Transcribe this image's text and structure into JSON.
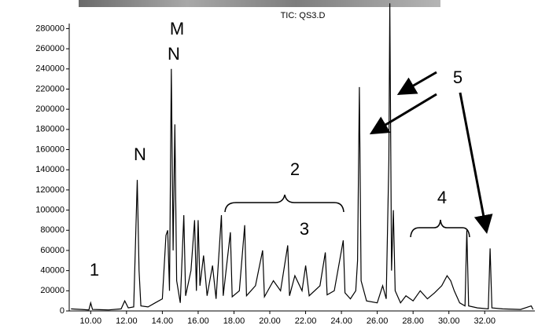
{
  "chart_data": {
    "type": "line",
    "title": "TIC: QS3.D",
    "x": [
      8.9,
      9.5,
      9.9,
      10.0,
      10.1,
      11.0,
      11.7,
      11.9,
      12.1,
      12.4,
      12.6,
      12.7,
      12.8,
      13.2,
      13.6,
      14.0,
      14.2,
      14.3,
      14.4,
      14.5,
      14.6,
      14.7,
      14.8,
      15.0,
      15.2,
      15.3,
      15.6,
      15.8,
      15.9,
      16.0,
      16.1,
      16.3,
      16.5,
      16.8,
      17.0,
      17.3,
      17.4,
      17.8,
      17.9,
      18.3,
      18.6,
      18.7,
      19.2,
      19.6,
      19.7,
      20.2,
      20.6,
      21.0,
      21.1,
      21.4,
      21.8,
      22.0,
      22.2,
      22.8,
      23.1,
      23.2,
      23.6,
      24.1,
      24.2,
      24.5,
      24.8,
      24.9,
      25.0,
      25.1,
      25.4,
      26.0,
      26.3,
      26.5,
      26.65,
      26.7,
      26.8,
      26.9,
      27.0,
      27.3,
      27.6,
      28.0,
      28.4,
      28.8,
      29.2,
      29.6,
      29.9,
      30.1,
      30.3,
      30.6,
      30.9,
      31.0,
      31.1,
      31.6,
      32.2,
      32.3,
      32.4,
      33.0,
      34.0,
      34.6,
      34.7
    ],
    "series": [
      {
        "color": "#000000",
        "values": [
          2000,
          1500,
          1000,
          8000,
          1500,
          1000,
          2000,
          10000,
          3000,
          4000,
          130000,
          40000,
          5000,
          4000,
          8000,
          12000,
          75000,
          80000,
          20000,
          240000,
          60000,
          185000,
          30000,
          8000,
          95000,
          15000,
          40000,
          90000,
          20000,
          90000,
          25000,
          55000,
          15000,
          45000,
          12000,
          95000,
          15000,
          78000,
          14000,
          20000,
          85000,
          15000,
          25000,
          60000,
          14000,
          30000,
          20000,
          65000,
          15000,
          35000,
          20000,
          45000,
          15000,
          25000,
          58000,
          16000,
          20000,
          70000,
          18000,
          12000,
          20000,
          50000,
          222000,
          30000,
          10000,
          8000,
          25000,
          12000,
          150000,
          305000,
          40000,
          100000,
          20000,
          8000,
          15000,
          10000,
          20000,
          12000,
          18000,
          25000,
          35000,
          30000,
          20000,
          8000,
          5000,
          80000,
          5000,
          3000,
          2000,
          62000,
          3000,
          2000,
          1500,
          5000,
          1500
        ]
      }
    ],
    "xlim": [
      8.8,
      34.8
    ],
    "ylim": [
      0,
      285000
    ],
    "xticks": [
      {
        "value": 10,
        "label": "10.00"
      },
      {
        "value": 12,
        "label": "12.00"
      },
      {
        "value": 14,
        "label": "14.00"
      },
      {
        "value": 16,
        "label": "16.00"
      },
      {
        "value": 18,
        "label": "18.00"
      },
      {
        "value": 20,
        "label": "20.00"
      },
      {
        "value": 22,
        "label": "22.00"
      },
      {
        "value": 24,
        "label": "24.00"
      },
      {
        "value": 26,
        "label": "26.00"
      },
      {
        "value": 28,
        "label": "28.00"
      },
      {
        "value": 30,
        "label": "30.00"
      },
      {
        "value": 32,
        "label": "32.00"
      }
    ],
    "yticks": [
      0,
      20000,
      40000,
      60000,
      80000,
      100000,
      120000,
      140000,
      160000,
      180000,
      200000,
      220000,
      240000,
      260000,
      280000
    ],
    "annotations": [
      "1",
      "N",
      "M",
      "N",
      "2",
      "3",
      "4",
      "5"
    ]
  }
}
